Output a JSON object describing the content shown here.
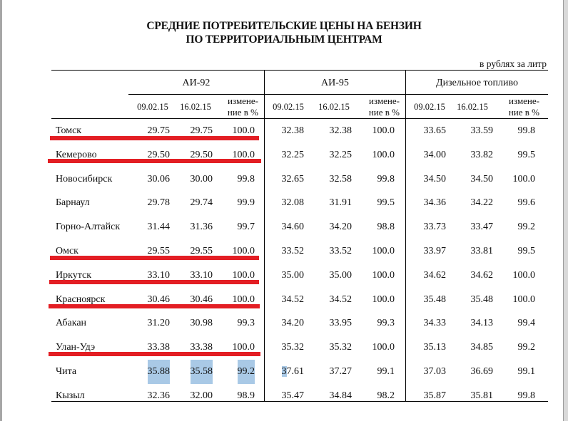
{
  "title": {
    "line1": "СРЕДНИЕ ПОТРЕБИТЕЛЬСКИЕ ЦЕНЫ НА БЕНЗИН",
    "line2": "ПО ТЕРРИТОРИАЛЬНЫМ ЦЕНТРАМ"
  },
  "units": "в рублях за литр",
  "groups": [
    "АИ-92",
    "АИ-95",
    "Дизельное топливо"
  ],
  "subheaders": {
    "date1": "09.02.15",
    "date2": "16.02.15",
    "change_line1": "измене-",
    "change_line2": "ние в %",
    "change_line2_diesel": "ние  в %"
  },
  "rows": [
    {
      "city": "Томск",
      "ai92": [
        "29.75",
        "29.75",
        "100.0"
      ],
      "ai95": [
        "32.38",
        "32.38",
        "100.0"
      ],
      "diesel": [
        "33.65",
        "33.59",
        "99.8"
      ]
    },
    {
      "city": "Кемерово",
      "ai92": [
        "29.50",
        "29.50",
        "100.0"
      ],
      "ai95": [
        "32.25",
        "32.25",
        "100.0"
      ],
      "diesel": [
        "34.00",
        "33.82",
        "99.5"
      ]
    },
    {
      "city": "Новосибирск",
      "ai92": [
        "30.06",
        "30.00",
        "99.8"
      ],
      "ai95": [
        "32.65",
        "32.58",
        "99.8"
      ],
      "diesel": [
        "34.50",
        "34.50",
        "100.0"
      ]
    },
    {
      "city": "Барнаул",
      "ai92": [
        "29.78",
        "29.74",
        "99.9"
      ],
      "ai95": [
        "32.08",
        "31.91",
        "99.5"
      ],
      "diesel": [
        "34.36",
        "34.22",
        "99.6"
      ]
    },
    {
      "city": "Горно-Алтайск",
      "ai92": [
        "31.44",
        "31.36",
        "99.7"
      ],
      "ai95": [
        "34.60",
        "34.20",
        "98.8"
      ],
      "diesel": [
        "33.73",
        "33.47",
        "99.2"
      ]
    },
    {
      "city": "Омск",
      "ai92": [
        "29.55",
        "29.55",
        "100.0"
      ],
      "ai95": [
        "33.52",
        "33.52",
        "100.0"
      ],
      "diesel": [
        "33.97",
        "33.81",
        "99.5"
      ]
    },
    {
      "city": "Иркутск",
      "ai92": [
        "33.10",
        "33.10",
        "100.0"
      ],
      "ai95": [
        "35.00",
        "35.00",
        "100.0"
      ],
      "diesel": [
        "34.62",
        "34.62",
        "100.0"
      ]
    },
    {
      "city": "Красноярск",
      "ai92": [
        "30.46",
        "30.46",
        "100.0"
      ],
      "ai95": [
        "34.52",
        "34.52",
        "100.0"
      ],
      "diesel": [
        "35.48",
        "35.48",
        "100.0"
      ]
    },
    {
      "city": "Абакан",
      "ai92": [
        "31.20",
        "30.98",
        "99.3"
      ],
      "ai95": [
        "34.20",
        "33.95",
        "99.3"
      ],
      "diesel": [
        "34.33",
        "34.13",
        "99.4"
      ]
    },
    {
      "city": "Улан-Удэ",
      "ai92": [
        "33.38",
        "33.38",
        "100.0"
      ],
      "ai95": [
        "35.32",
        "35.32",
        "100.0"
      ],
      "diesel": [
        "35.13",
        "34.85",
        "99.2"
      ]
    },
    {
      "city": "Чита",
      "ai92": [
        "35.88",
        "35.58",
        "99.2"
      ],
      "ai95": [
        "37.61",
        "37.27",
        "99.1"
      ],
      "diesel": [
        "37.03",
        "36.69",
        "99.1"
      ]
    },
    {
      "city": "Кызыл",
      "ai92": [
        "32.36",
        "32.00",
        "98.9"
      ],
      "ai95": [
        "35.47",
        "34.84",
        "98.2"
      ],
      "diesel": [
        "35.87",
        "35.81",
        "99.8"
      ]
    }
  ],
  "annotations": {
    "underline_color": "#e31e24",
    "underlined_rows": [
      "Томск",
      "Кемерово",
      "Омск",
      "Иркутск",
      "Красноярск",
      "Улан-Удэ"
    ],
    "selection_color": "#a9c9e6",
    "selected_cells": [
      "Чита.ai92",
      "Чита.ai95.first_digit"
    ]
  }
}
